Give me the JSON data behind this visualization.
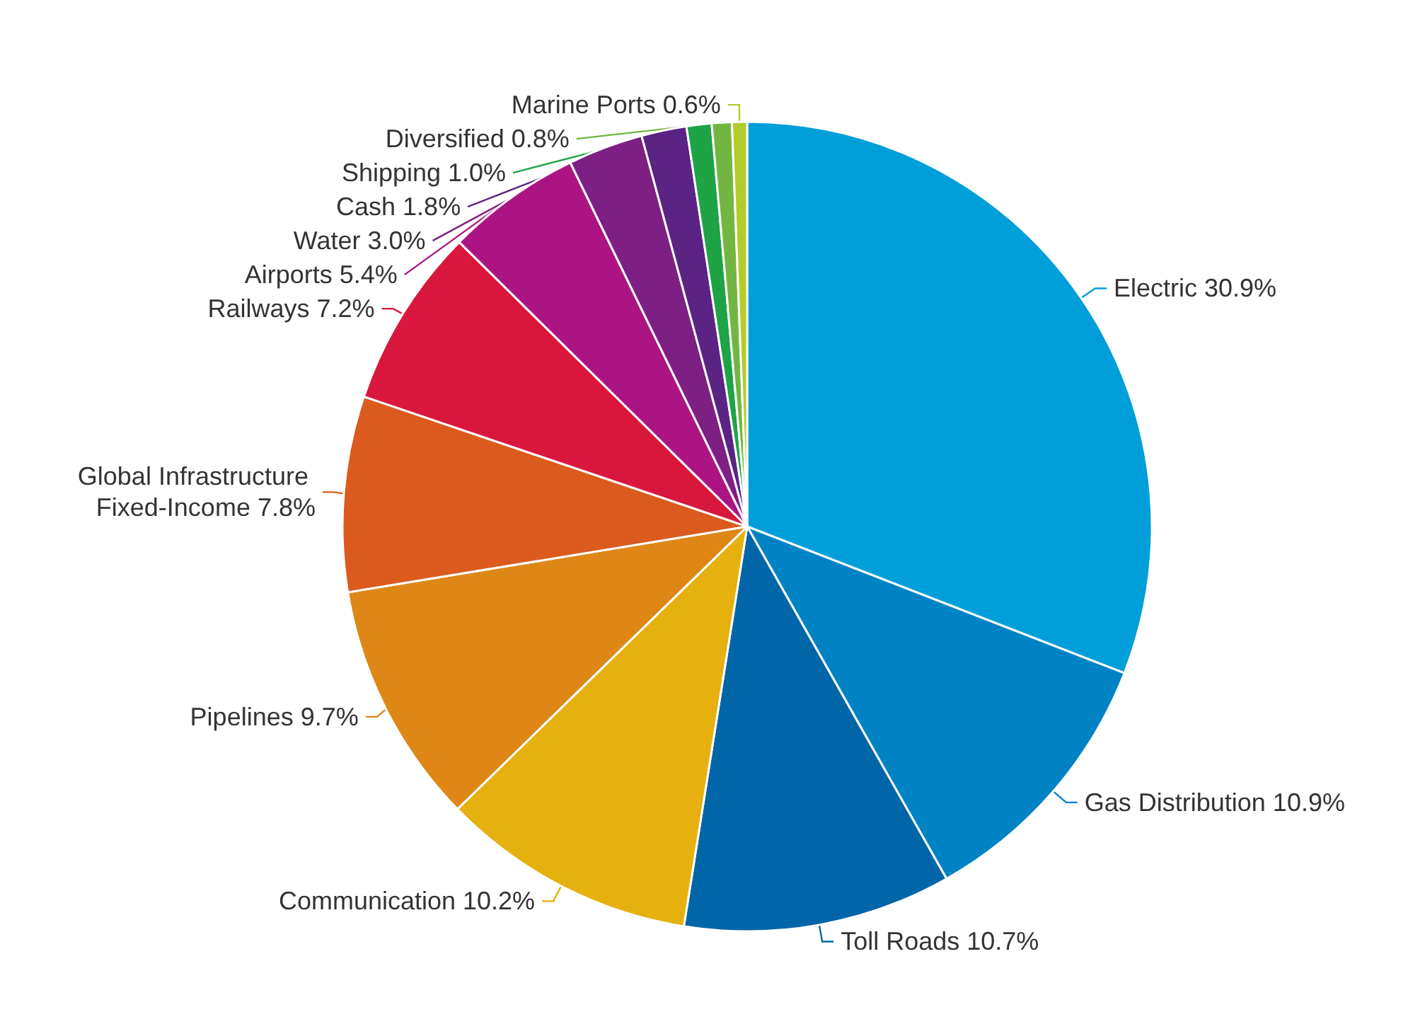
{
  "chart_data": {
    "type": "pie",
    "categories": [
      "Electric",
      "Gas Distribution",
      "Toll Roads",
      "Communication",
      "Pipelines",
      "Global Infrastructure Fixed-Income",
      "Railways",
      "Airports",
      "Water",
      "Cash",
      "Shipping",
      "Diversified",
      "Marine Ports"
    ],
    "values": [
      30.9,
      10.9,
      10.7,
      10.2,
      9.7,
      7.8,
      7.2,
      5.4,
      3.0,
      1.8,
      1.0,
      0.8,
      0.6
    ],
    "value_labels": [
      "30.9%",
      "10.9%",
      "10.7%",
      "10.2%",
      "9.7%",
      "7.8%",
      "7.2%",
      "5.4%",
      "3.0%",
      "1.8%",
      "1.0%",
      "0.8%",
      "0.6%"
    ],
    "colors": [
      "#009fda",
      "#0083c4",
      "#0066a8",
      "#e6b00e",
      "#de8716",
      "#db5a1d",
      "#d9173d",
      "#ad1483",
      "#7e1f83",
      "#5b2383",
      "#1ea345",
      "#72b641",
      "#b3cc2b"
    ],
    "legend": false
  }
}
